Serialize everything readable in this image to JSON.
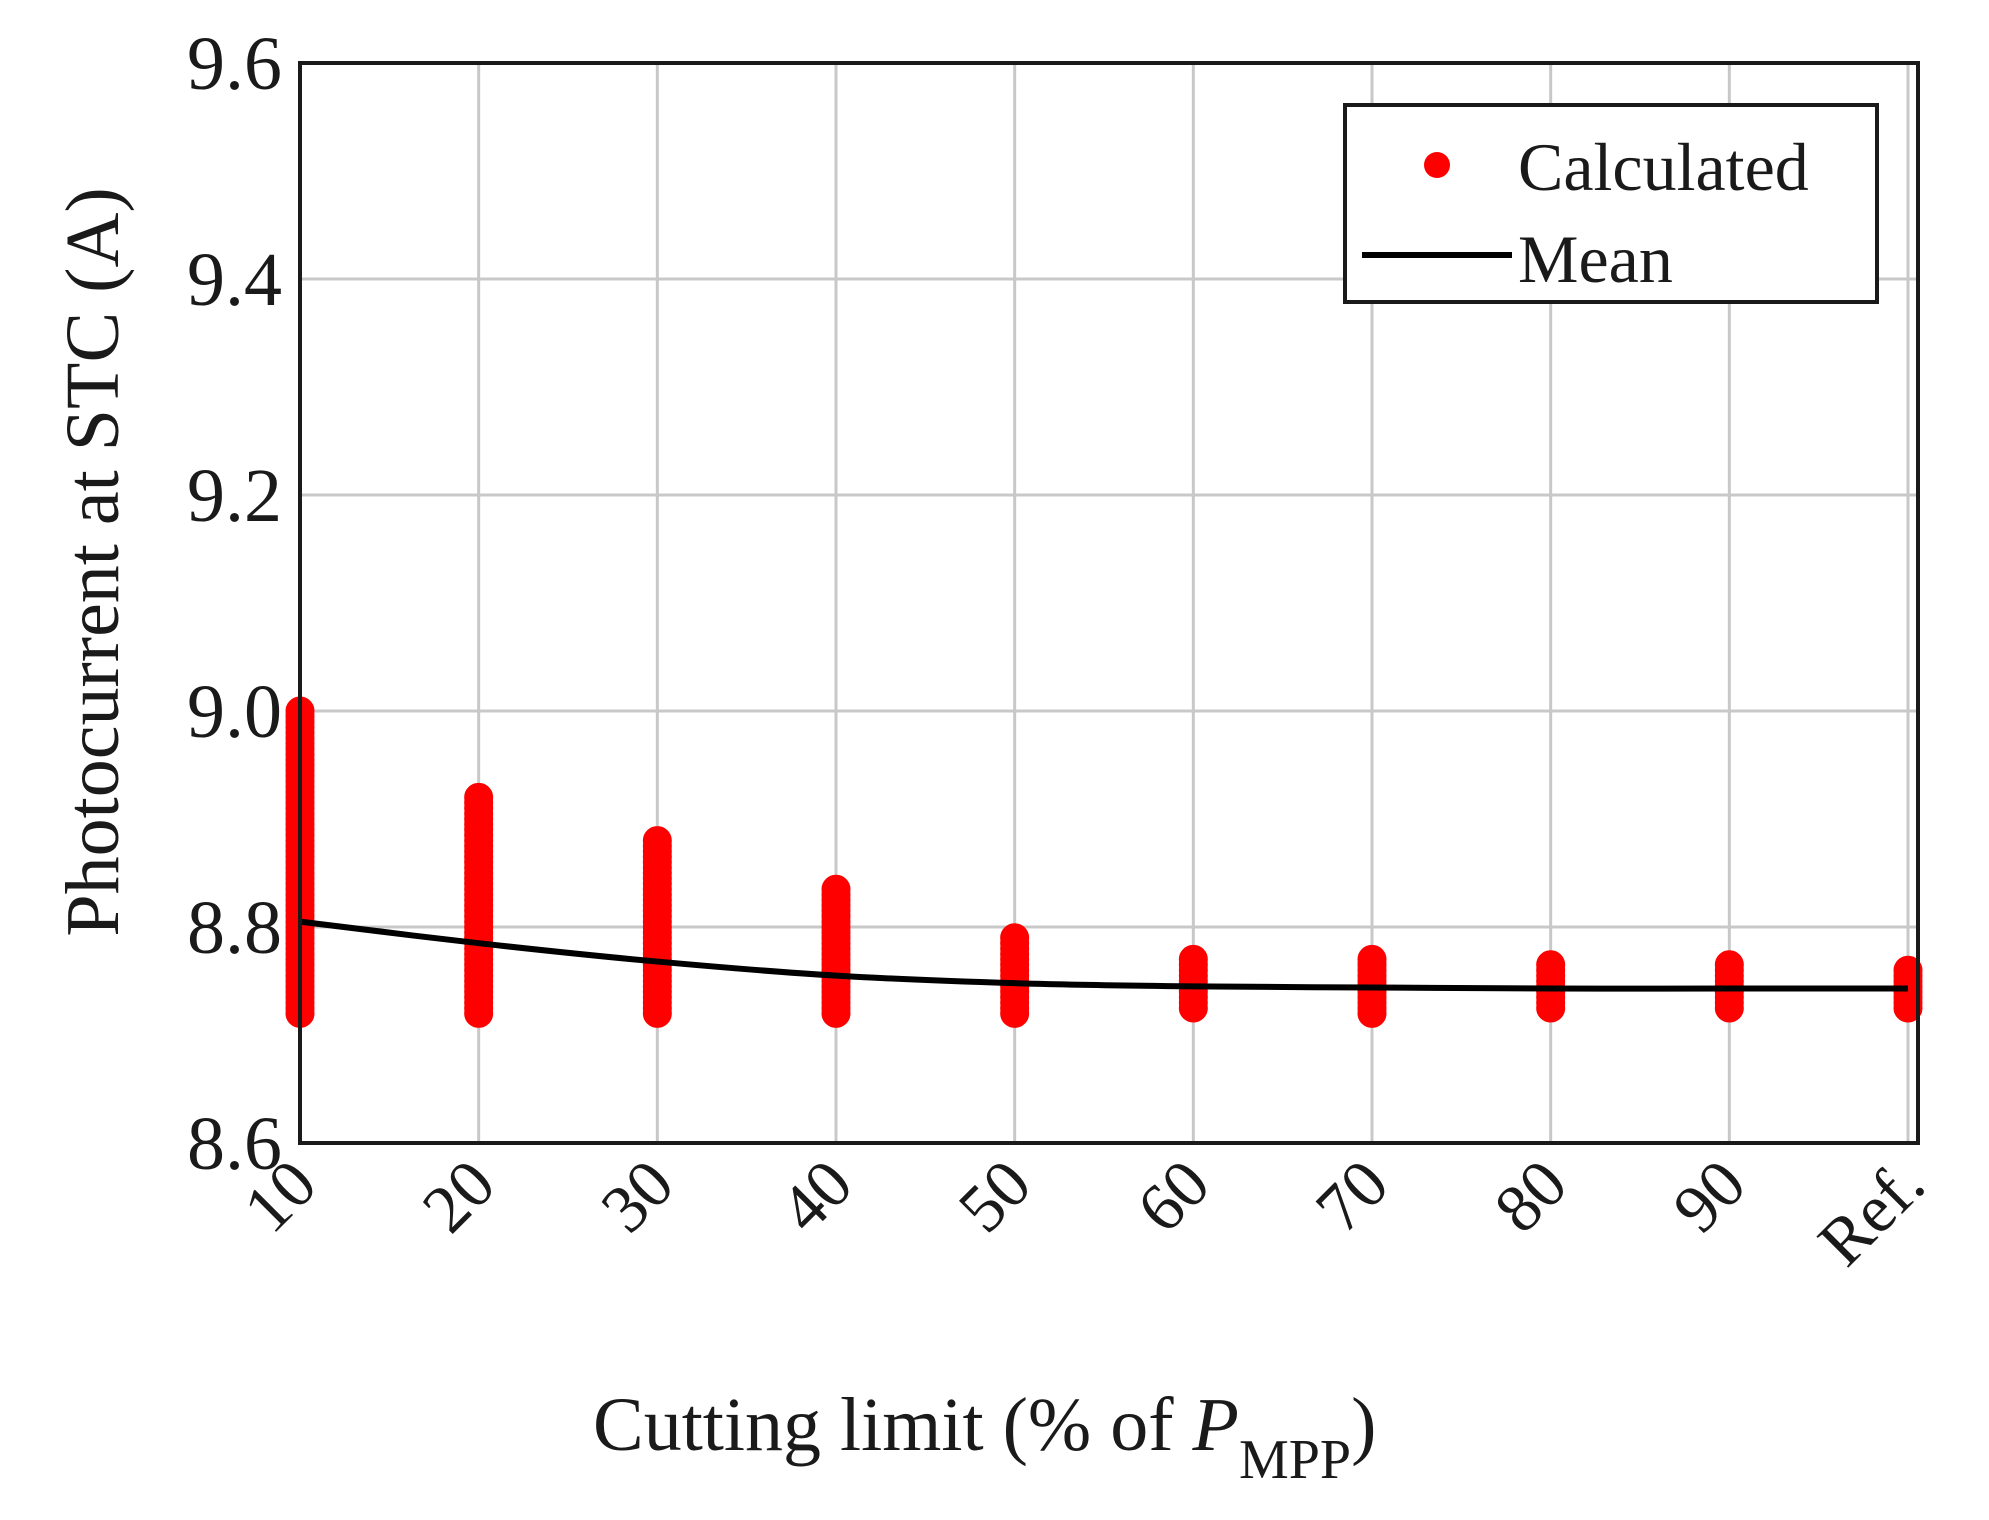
{
  "chart_data": {
    "type": "scatter",
    "categories": [
      "10",
      "20",
      "30",
      "40",
      "50",
      "60",
      "70",
      "80",
      "90",
      "Ref."
    ],
    "ylabel": "Photocurrent at STC (A)",
    "xlabel": {
      "main": "Cutting limit (% of ",
      "italic": "P",
      "subscript": "MPP",
      "close": ")"
    },
    "ylim": [
      8.6,
      9.6
    ],
    "yticks": [
      8.6,
      8.8,
      9.0,
      9.2,
      9.4,
      9.6
    ],
    "ytick_labels": [
      "8.6",
      "8.8",
      "9.0",
      "9.2",
      "9.4",
      "9.6"
    ],
    "grid": true,
    "legend_position": "top-right",
    "series": [
      {
        "name": "Calculated",
        "kind": "scatter",
        "color": "#ff0000",
        "ranges": [
          {
            "category": "10",
            "min": 8.72,
            "max": 9.0
          },
          {
            "category": "20",
            "min": 8.72,
            "max": 8.92
          },
          {
            "category": "30",
            "min": 8.72,
            "max": 8.88
          },
          {
            "category": "40",
            "min": 8.72,
            "max": 8.835
          },
          {
            "category": "50",
            "min": 8.72,
            "max": 8.79
          },
          {
            "category": "60",
            "min": 8.725,
            "max": 8.77
          },
          {
            "category": "70",
            "min": 8.72,
            "max": 8.77
          },
          {
            "category": "80",
            "min": 8.725,
            "max": 8.765
          },
          {
            "category": "90",
            "min": 8.725,
            "max": 8.765
          },
          {
            "category": "Ref.",
            "min": 8.725,
            "max": 8.76
          }
        ]
      },
      {
        "name": "Mean",
        "kind": "line",
        "color": "#000000",
        "values": [
          8.805,
          8.785,
          8.768,
          8.755,
          8.748,
          8.745,
          8.744,
          8.743,
          8.743,
          8.743
        ]
      }
    ]
  }
}
